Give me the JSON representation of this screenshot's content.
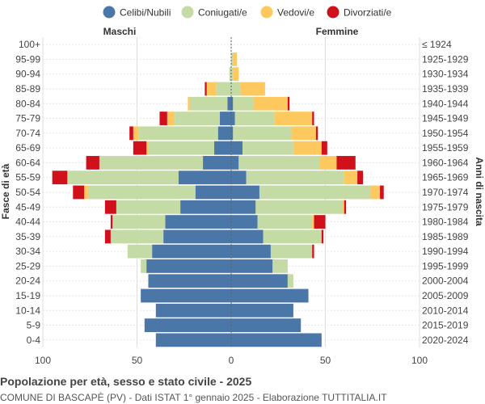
{
  "chart_data": {
    "type": "bar",
    "orientation": "horizontal-diverging",
    "title": "Popolazione per età, sesso e stato civile - 2025",
    "subtitle": "COMUNE DI BASCAPÈ (PV) - Dati ISTAT 1° gennaio 2025 - Elaborazione TUTTITALIA.IT",
    "ylabel_left": "Fasce di età",
    "ylabel_right": "Anni di nascita",
    "left_side_label": "Maschi",
    "right_side_label": "Femmine",
    "xlim": [
      -100,
      100
    ],
    "x_ticks": [
      -100,
      -50,
      0,
      50,
      100
    ],
    "x_tick_labels": [
      "100",
      "50",
      "0",
      "50",
      "100"
    ],
    "grid": true,
    "legend_position": "top",
    "series_colors": {
      "celibi": "#4a76a8",
      "coniugati": "#c5dba6",
      "vedovi": "#fdc85e",
      "divorziati": "#d0101a"
    },
    "legend": [
      {
        "key": "celibi",
        "label": "Celibi/Nubili"
      },
      {
        "key": "coniugati",
        "label": "Coniugati/e"
      },
      {
        "key": "vedovi",
        "label": "Vedovi/e"
      },
      {
        "key": "divorziati",
        "label": "Divorziati/e"
      }
    ],
    "categories": [
      "100+",
      "95-99",
      "90-94",
      "85-89",
      "80-84",
      "75-79",
      "70-74",
      "65-69",
      "60-64",
      "55-59",
      "50-54",
      "45-49",
      "40-44",
      "35-39",
      "30-34",
      "25-29",
      "20-24",
      "15-19",
      "10-14",
      "5-9",
      "0-4"
    ],
    "birth_years": [
      "≤ 1924",
      "1925-1929",
      "1930-1934",
      "1935-1939",
      "1940-1944",
      "1945-1949",
      "1950-1954",
      "1955-1959",
      "1960-1964",
      "1965-1969",
      "1970-1974",
      "1975-1979",
      "1980-1984",
      "1985-1989",
      "1990-1994",
      "1995-1999",
      "2000-2004",
      "2005-2009",
      "2010-2014",
      "2015-2019",
      "2020-2024"
    ],
    "males": {
      "celibi": [
        0,
        0,
        0,
        0,
        2,
        6,
        7,
        9,
        15,
        28,
        19,
        27,
        35,
        36,
        42,
        45,
        44,
        48,
        40,
        46,
        40
      ],
      "coniugati": [
        0,
        0,
        1,
        8,
        20,
        24,
        42,
        35,
        55,
        59,
        57,
        34,
        28,
        28,
        13,
        3,
        0,
        0,
        0,
        0,
        0
      ],
      "vedovi": [
        0,
        0,
        0,
        5,
        1,
        4,
        3,
        1,
        0,
        0,
        2,
        0,
        0,
        0,
        0,
        0,
        0,
        0,
        0,
        0,
        0
      ],
      "divorziati": [
        0,
        0,
        0,
        1,
        0,
        4,
        2,
        7,
        7,
        8,
        6,
        6,
        1,
        3,
        0,
        0,
        0,
        0,
        0,
        0,
        0
      ]
    },
    "females": {
      "celibi": [
        0,
        0,
        0,
        0,
        1,
        2,
        1,
        6,
        4,
        8,
        15,
        13,
        14,
        17,
        21,
        22,
        30,
        41,
        33,
        37,
        48
      ],
      "coniugati": [
        0,
        1,
        1,
        5,
        11,
        21,
        31,
        27,
        43,
        52,
        59,
        46,
        29,
        31,
        22,
        8,
        3,
        0,
        0,
        0,
        0
      ],
      "vedovi": [
        0,
        2,
        3,
        13,
        18,
        20,
        13,
        15,
        9,
        7,
        5,
        1,
        1,
        0,
        0,
        0,
        0,
        0,
        0,
        0,
        0
      ],
      "divorziati": [
        0,
        0,
        0,
        0,
        1,
        1,
        1,
        3,
        10,
        3,
        2,
        1,
        6,
        1,
        1,
        0,
        0,
        0,
        0,
        0,
        0
      ]
    }
  }
}
